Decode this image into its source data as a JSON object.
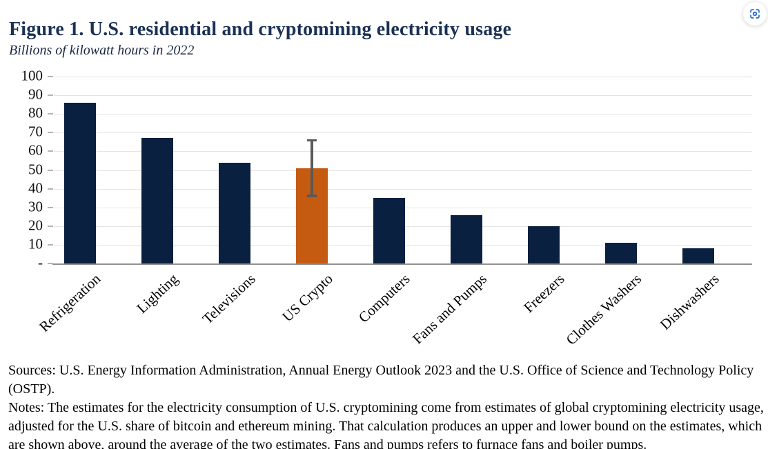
{
  "header": {
    "button": {
      "icon": "screen-capture-icon"
    }
  },
  "chart_data": {
    "type": "bar",
    "title": "Figure 1. U.S. residential and cryptomining electricity usage",
    "subtitle": "Billions of kilowatt hours in 2022",
    "categories": [
      "Refrigeration",
      "Lighting",
      "Televisions",
      "US Crypto",
      "Computers",
      "Fans and Pumps",
      "Freezers",
      "Clothes Washers",
      "Dishwashers"
    ],
    "values": [
      86,
      67,
      54,
      51,
      35,
      26,
      20,
      11,
      8
    ],
    "highlight_index": 3,
    "error_bar": {
      "category": "US Crypto",
      "low": 36,
      "high": 66
    },
    "xlabel": "",
    "ylabel": "Billions of kilowatt hours",
    "ylim": [
      0,
      100
    ],
    "yticks": [
      "100",
      "90",
      "80",
      "70",
      "60",
      "50",
      "40",
      "30",
      "20",
      "10",
      "-"
    ],
    "grid": true,
    "legend": false,
    "colors": {
      "bar": "#0a2040",
      "highlight": "#c55a11",
      "error_bar": "#595959",
      "gridline": "#e4e4e4",
      "axis_line": "#8f8f8f",
      "title": "#1b3156",
      "icon_blue": "#1e6ad1"
    }
  },
  "footer": {
    "sources": "Sources: U.S. Energy Information Administration, Annual Energy Outlook 2023 and the U.S. Office of Science and Technology Policy (OSTP).",
    "notes": "Notes: The estimates for the electricity consumption of U.S. cryptomining come from estimates of global cryptomining electricity usage, adjusted for the U.S. share of bitcoin and ethereum mining. That calculation produces an upper and lower bound on the estimates, which are shown above, around the average of the two estimates. Fans and pumps refers to furnace fans and boiler pumps."
  }
}
